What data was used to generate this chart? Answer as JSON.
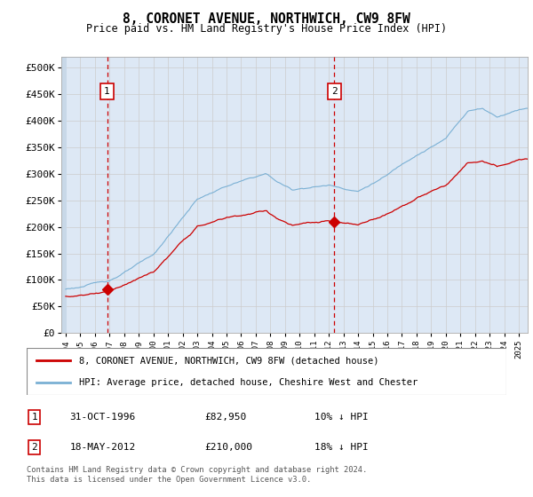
{
  "title": "8, CORONET AVENUE, NORTHWICH, CW9 8FW",
  "subtitle": "Price paid vs. HM Land Registry's House Price Index (HPI)",
  "ylabel_ticks": [
    "£0",
    "£50K",
    "£100K",
    "£150K",
    "£200K",
    "£250K",
    "£300K",
    "£350K",
    "£400K",
    "£450K",
    "£500K"
  ],
  "ytick_values": [
    0,
    50000,
    100000,
    150000,
    200000,
    250000,
    300000,
    350000,
    400000,
    450000,
    500000
  ],
  "ylim": [
    0,
    520000
  ],
  "xlim_start": 1993.7,
  "xlim_end": 2025.6,
  "sale1_date": 1996.833,
  "sale1_price": 82950,
  "sale1_label": "1",
  "sale2_date": 2012.375,
  "sale2_price": 210000,
  "sale2_label": "2",
  "property_line_color": "#cc0000",
  "hpi_line_color": "#7ab0d4",
  "plot_bg_color": "#dde8f5",
  "legend_label1": "8, CORONET AVENUE, NORTHWICH, CW9 8FW (detached house)",
  "legend_label2": "HPI: Average price, detached house, Cheshire West and Chester",
  "annotation1_date": "31-OCT-1996",
  "annotation1_price": "£82,950",
  "annotation1_hpi": "10% ↓ HPI",
  "annotation2_date": "18-MAY-2012",
  "annotation2_price": "£210,000",
  "annotation2_hpi": "18% ↓ HPI",
  "footnote": "Contains HM Land Registry data © Crown copyright and database right 2024.\nThis data is licensed under the Open Government Licence v3.0.",
  "xticks": [
    1994,
    1995,
    1996,
    1997,
    1998,
    1999,
    2000,
    2001,
    2002,
    2003,
    2004,
    2005,
    2006,
    2007,
    2008,
    2009,
    2010,
    2011,
    2012,
    2013,
    2014,
    2015,
    2016,
    2017,
    2018,
    2019,
    2020,
    2021,
    2022,
    2023,
    2024,
    2025
  ]
}
